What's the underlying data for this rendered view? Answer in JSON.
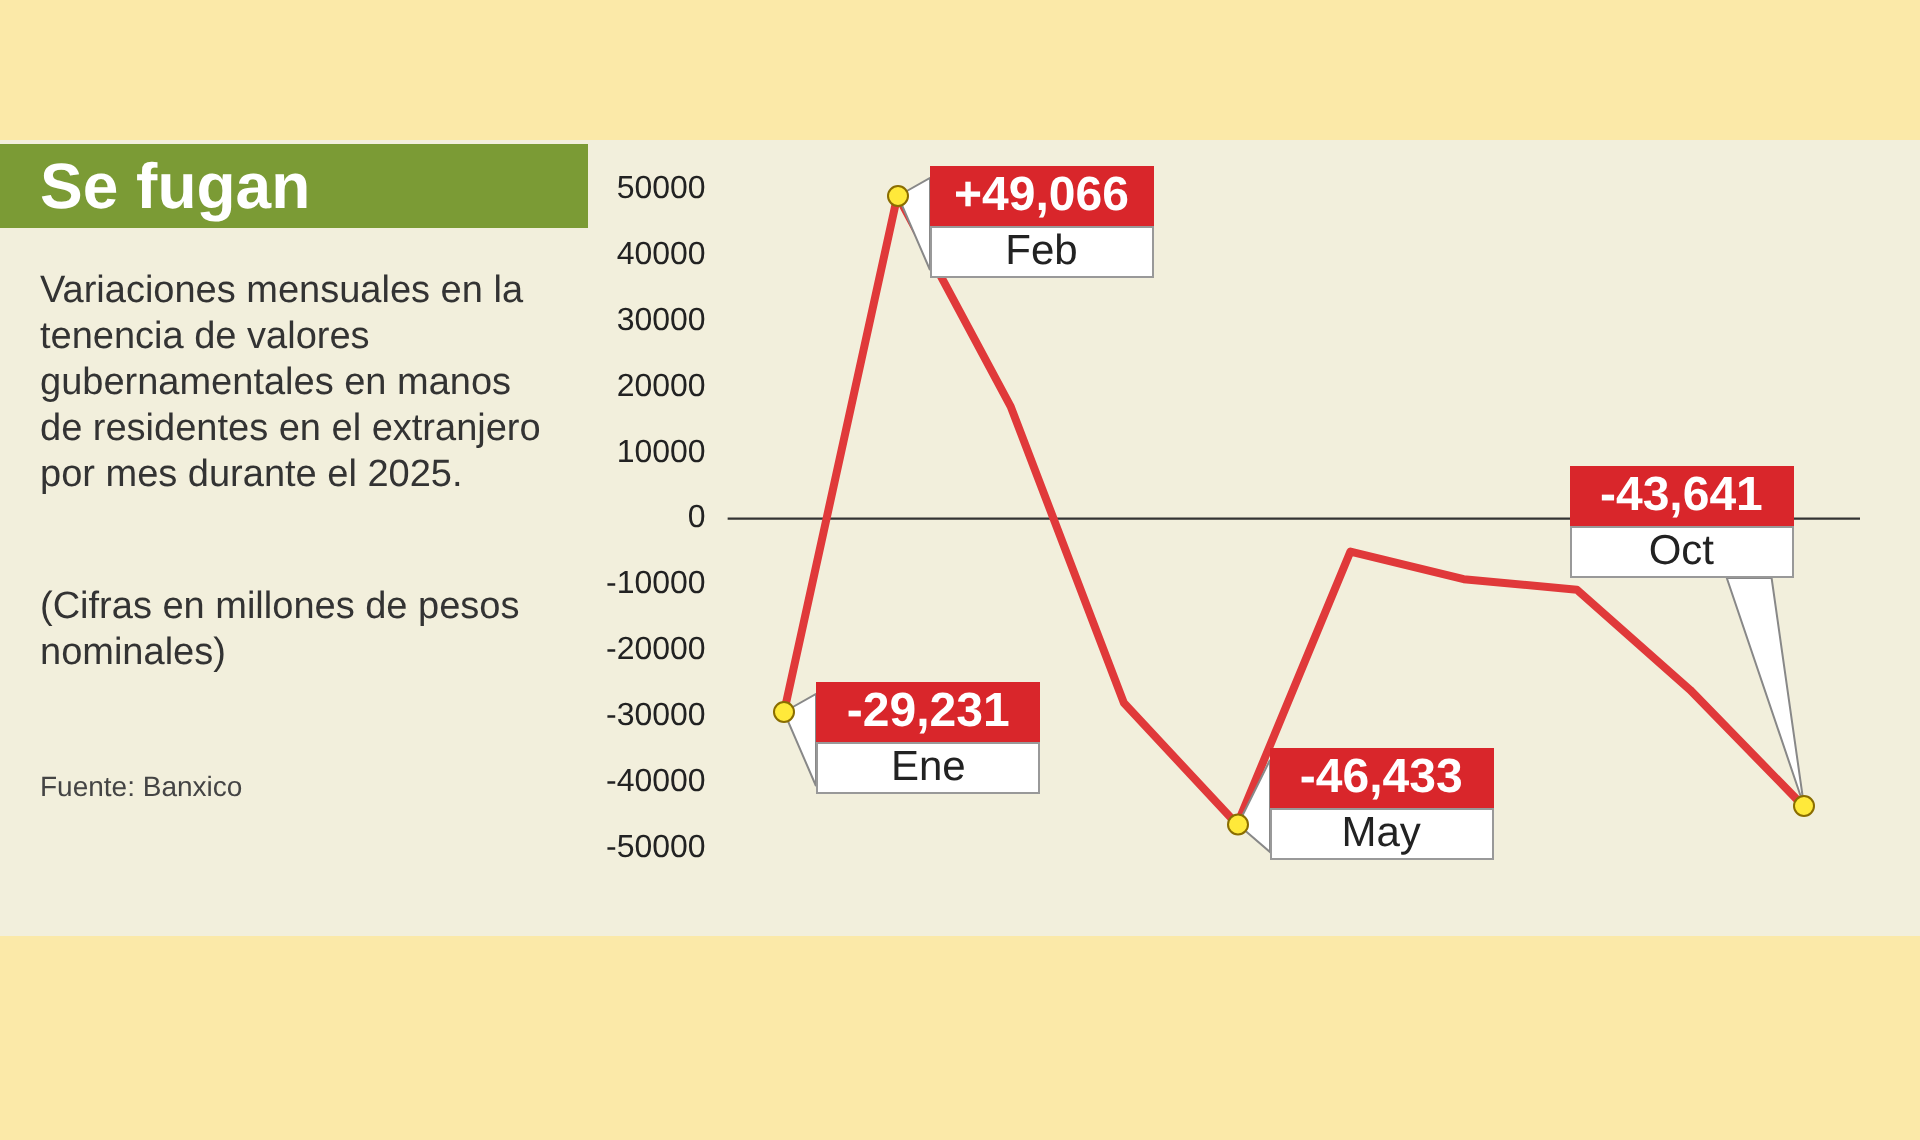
{
  "chart_data": {
    "type": "line",
    "title": "Se fugan",
    "subtitle": "Variaciones mensuales en la tenencia de valores gubernamentales en manos de residentes en el extranjero por mes durante el 2025.",
    "categories": [
      null,
      null,
      null,
      null,
      null,
      null,
      null,
      null,
      null,
      null
    ],
    "series": [
      {
        "color": "#e0393a",
        "values": [
          -29231,
          49066,
          17000,
          -28000,
          -46433,
          -5000,
          -9200,
          -10800,
          -26000,
          -43641
        ],
        "value_labels": [
          "-29,231",
          "+49,066",
          null,
          null,
          "-46,433",
          null,
          null,
          null,
          null,
          "-43,641"
        ]
      }
    ],
    "ylim": [
      -50000,
      50000
    ],
    "yticks": [
      -50000,
      -40000,
      -30000,
      -20000,
      -10000,
      0,
      10000,
      20000,
      30000,
      40000,
      50000
    ],
    "grid": false,
    "legend": false,
    "tick_labels": "y",
    "line_style": "solid",
    "ref_lines": [
      {
        "axis": "y",
        "value": 0,
        "color": "#333333"
      }
    ],
    "annotations": [
      "Ene",
      "Feb",
      "May",
      "Oct",
      "(Cifras en millones de pesos nominales)",
      "Fuente: Banxico"
    ]
  }
}
